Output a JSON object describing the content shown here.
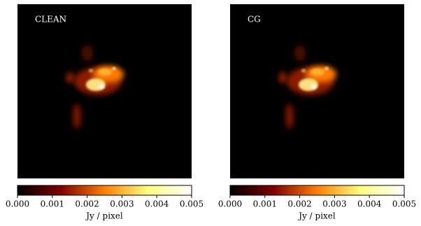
{
  "chart_data": [
    {
      "type": "image",
      "label": "CLEAN",
      "colormap": "afmhot",
      "xlim": [
        0,
        0.005
      ],
      "xticks": [
        {
          "value": 0,
          "label": "0.000"
        },
        {
          "value": 0.001,
          "label": "0.001"
        },
        {
          "value": 0.002,
          "label": "0.002"
        },
        {
          "value": 0.003,
          "label": "0.003"
        },
        {
          "value": 0.004,
          "label": "0.004"
        },
        {
          "value": 0.005,
          "label": "0.005"
        }
      ],
      "xlabel": "Jy / pixel"
    },
    {
      "type": "image",
      "label": "CG",
      "colormap": "afmhot",
      "xlim": [
        0,
        0.005
      ],
      "xticks": [
        {
          "value": 0,
          "label": "0.000"
        },
        {
          "value": 0.001,
          "label": "0.001"
        },
        {
          "value": 0.002,
          "label": "0.002"
        },
        {
          "value": 0.003,
          "label": "0.003"
        },
        {
          "value": 0.004,
          "label": "0.004"
        },
        {
          "value": 0.005,
          "label": "0.005"
        }
      ],
      "xlabel": "Jy / pixel"
    }
  ]
}
